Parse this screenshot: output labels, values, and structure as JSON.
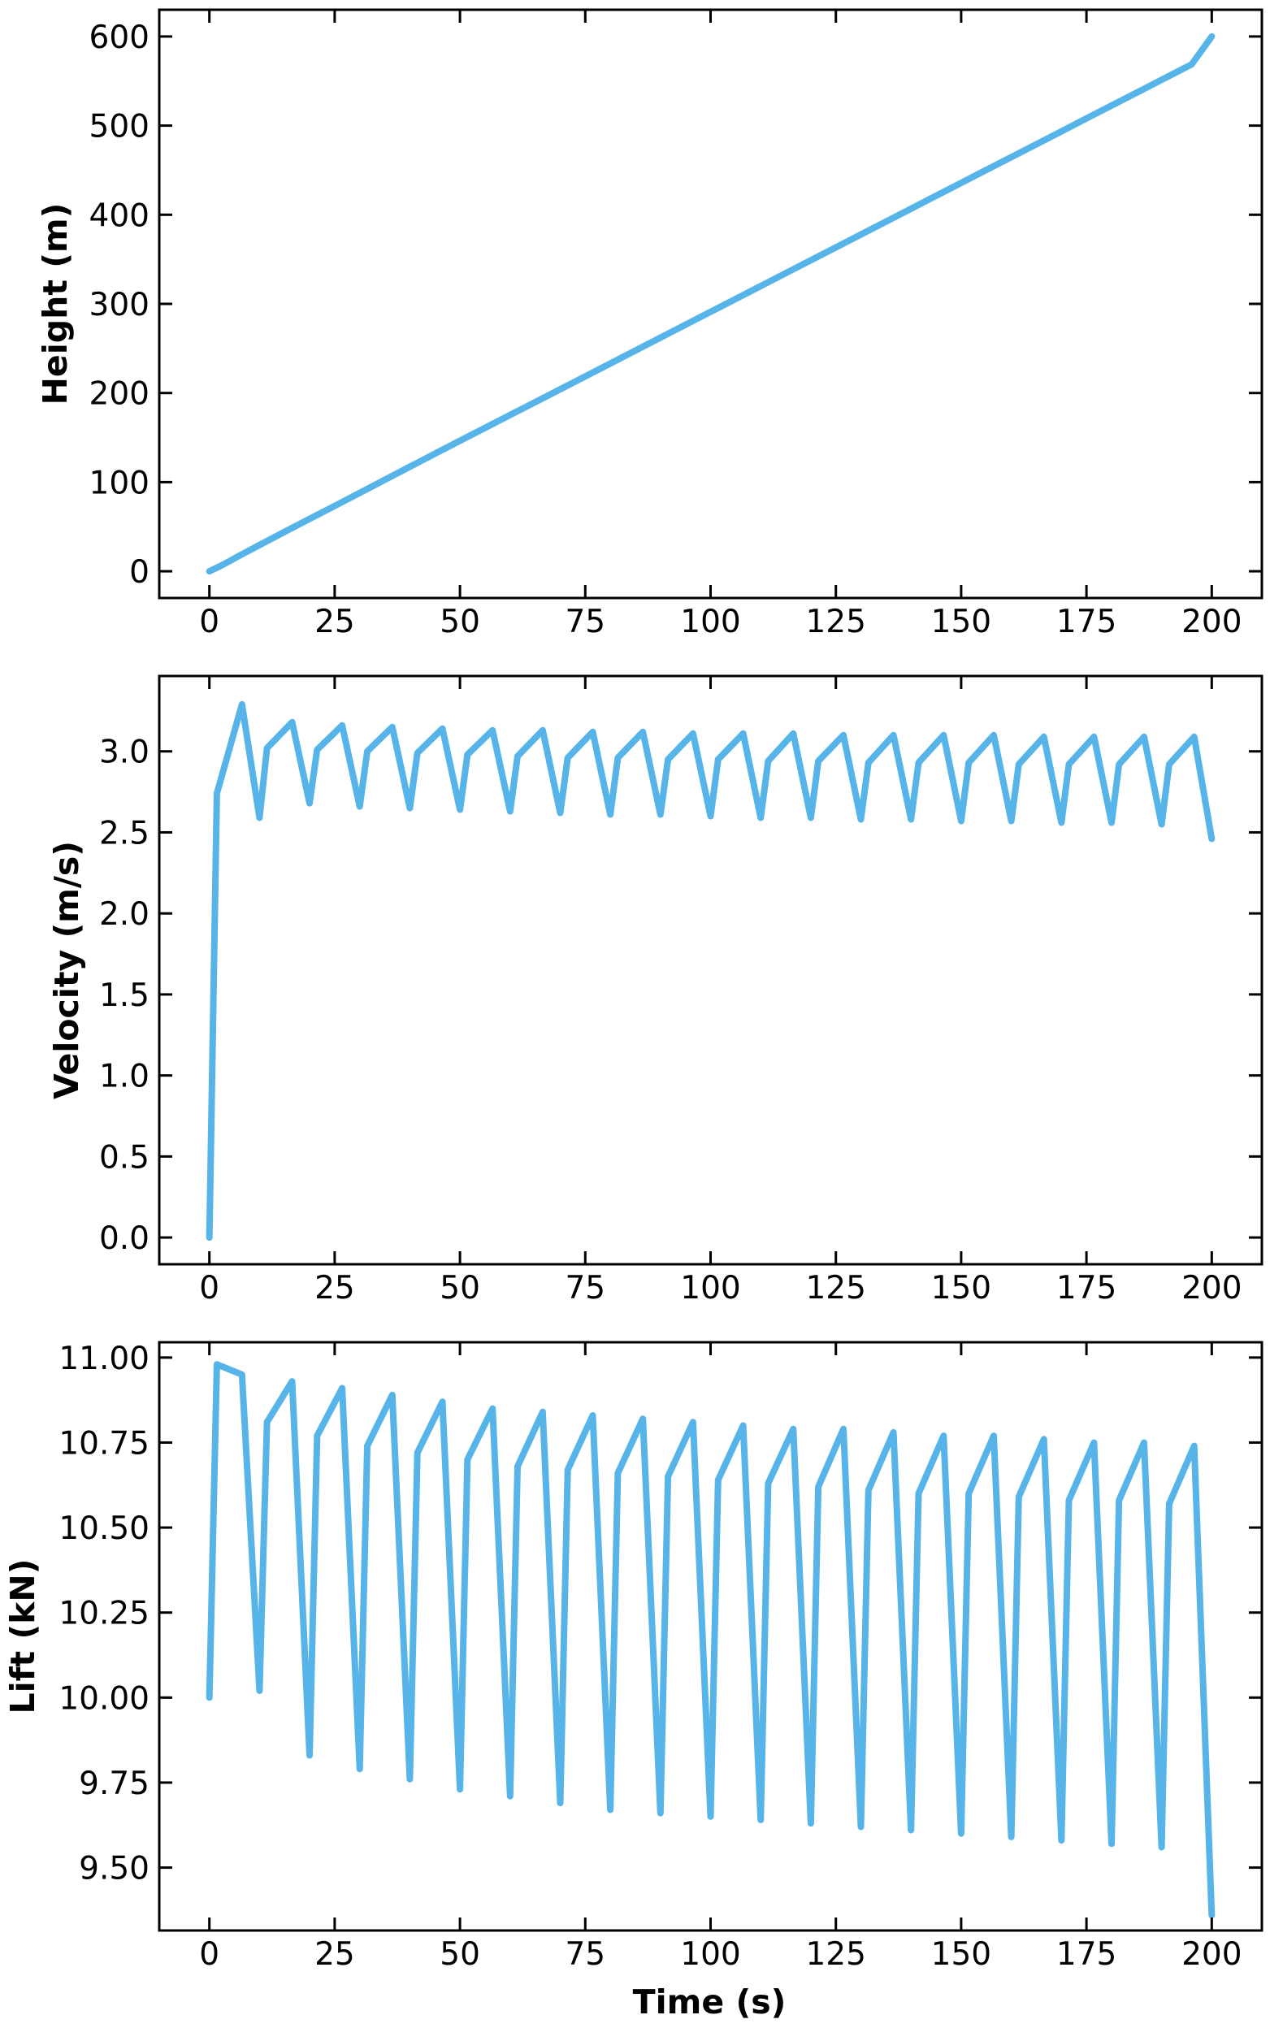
{
  "figure": {
    "line_color": "#56b4e9",
    "xlabel": "Time (s)",
    "x_ticks": [
      0,
      25,
      50,
      75,
      100,
      125,
      150,
      175,
      200
    ],
    "xlim": [
      -10,
      210
    ]
  },
  "chart_data": [
    {
      "type": "line",
      "title": "",
      "xlabel": "",
      "ylabel": "Height (m)",
      "xlim": [
        -10,
        210
      ],
      "ylim": [
        -30,
        630
      ],
      "y_ticks": [
        0,
        100,
        200,
        300,
        400,
        500,
        600
      ],
      "y_tick_labels": [
        "0",
        "100",
        "200",
        "300",
        "400",
        "500",
        "600"
      ],
      "grid": false,
      "x": [
        0,
        1.5,
        3,
        4.5,
        6,
        10,
        16,
        26,
        36,
        46,
        56,
        66,
        76,
        86,
        96,
        106,
        116,
        126,
        136,
        146,
        156,
        166,
        176,
        186,
        196,
        200
      ],
      "series": [
        {
          "values": [
            0,
            3.9,
            8.3,
            12.8,
            17.5,
            29.4,
            47.2,
            76.2,
            105.6,
            134.8,
            163.8,
            192.6,
            221.5,
            250.5,
            279.5,
            308.4,
            337.4,
            366.3,
            395.2,
            424.2,
            453.1,
            482.0,
            510.9,
            539.8,
            568.7,
            600.0
          ]
        }
      ]
    },
    {
      "type": "line",
      "title": "",
      "xlabel": "",
      "ylabel": "Velocity (m/s)",
      "xlim": [
        -10,
        210
      ],
      "ylim": [
        -0.165,
        3.465
      ],
      "y_ticks": [
        0.0,
        0.5,
        1.0,
        1.5,
        2.0,
        2.5,
        3.0
      ],
      "y_tick_labels": [
        "0.0",
        "0.5",
        "1.0",
        "1.5",
        "2.0",
        "2.5",
        "3.0"
      ],
      "grid": false,
      "x": [
        0,
        1.5,
        6.5,
        10,
        11.5,
        16.5,
        20,
        21.5,
        26.5,
        30,
        31.5,
        36.5,
        40,
        41.5,
        46.5,
        50,
        51.5,
        56.5,
        60,
        61.5,
        66.5,
        70,
        71.5,
        76.5,
        80,
        81.5,
        86.5,
        90,
        91.5,
        96.5,
        100,
        101.5,
        106.5,
        110,
        111.5,
        116.5,
        120,
        121.5,
        126.5,
        130,
        131.5,
        136.5,
        140,
        141.5,
        146.5,
        150,
        151.5,
        156.5,
        160,
        161.5,
        166.5,
        170,
        171.5,
        176.5,
        180,
        181.5,
        186.5,
        190,
        191.5,
        196.5,
        200
      ],
      "series": [
        {
          "values": [
            0.0,
            2.74,
            3.29,
            2.59,
            3.02,
            3.18,
            2.68,
            3.01,
            3.16,
            2.66,
            3.0,
            3.15,
            2.65,
            2.99,
            3.14,
            2.64,
            2.98,
            3.13,
            2.63,
            2.97,
            3.13,
            2.62,
            2.96,
            3.12,
            2.61,
            2.96,
            3.12,
            2.61,
            2.95,
            3.11,
            2.6,
            2.95,
            3.11,
            2.59,
            2.94,
            3.11,
            2.59,
            2.94,
            3.1,
            2.58,
            2.93,
            3.1,
            2.58,
            2.93,
            3.1,
            2.57,
            2.93,
            3.1,
            2.57,
            2.92,
            3.09,
            2.56,
            2.92,
            3.09,
            2.56,
            2.92,
            3.09,
            2.55,
            2.92,
            3.09,
            2.46
          ]
        }
      ]
    },
    {
      "type": "line",
      "title": "",
      "xlabel": "Time (s)",
      "ylabel": "Lift (kN)",
      "xlim": [
        -10,
        210
      ],
      "ylim": [
        9.315,
        11.045
      ],
      "y_ticks": [
        9.5,
        9.75,
        10.0,
        10.25,
        10.5,
        10.75,
        11.0
      ],
      "y_tick_labels": [
        "9.50",
        "9.75",
        "10.00",
        "10.25",
        "10.50",
        "10.75",
        "11.00"
      ],
      "grid": false,
      "x": [
        0,
        1.5,
        6.5,
        10,
        11.5,
        16.5,
        20,
        21.5,
        26.5,
        30,
        31.5,
        36.5,
        40,
        41.5,
        46.5,
        50,
        51.5,
        56.5,
        60,
        61.5,
        66.5,
        70,
        71.5,
        76.5,
        80,
        81.5,
        86.5,
        90,
        91.5,
        96.5,
        100,
        101.5,
        106.5,
        110,
        111.5,
        116.5,
        120,
        121.5,
        126.5,
        130,
        131.5,
        136.5,
        140,
        141.5,
        146.5,
        150,
        151.5,
        156.5,
        160,
        161.5,
        166.5,
        170,
        171.5,
        176.5,
        180,
        181.5,
        186.5,
        190,
        191.5,
        196.5,
        200
      ],
      "series": [
        {
          "values": [
            10.0,
            10.98,
            10.95,
            10.02,
            10.81,
            10.93,
            9.83,
            10.77,
            10.91,
            9.79,
            10.74,
            10.89,
            9.76,
            10.72,
            10.87,
            9.73,
            10.7,
            10.85,
            9.71,
            10.68,
            10.84,
            9.69,
            10.67,
            10.83,
            9.67,
            10.66,
            10.82,
            9.66,
            10.65,
            10.81,
            9.65,
            10.64,
            10.8,
            9.64,
            10.63,
            10.79,
            9.63,
            10.62,
            10.79,
            9.62,
            10.61,
            10.78,
            9.61,
            10.6,
            10.77,
            9.6,
            10.6,
            10.77,
            9.59,
            10.59,
            10.76,
            9.58,
            10.58,
            10.75,
            9.57,
            10.58,
            10.75,
            9.56,
            10.57,
            10.74,
            9.36
          ]
        }
      ]
    }
  ]
}
